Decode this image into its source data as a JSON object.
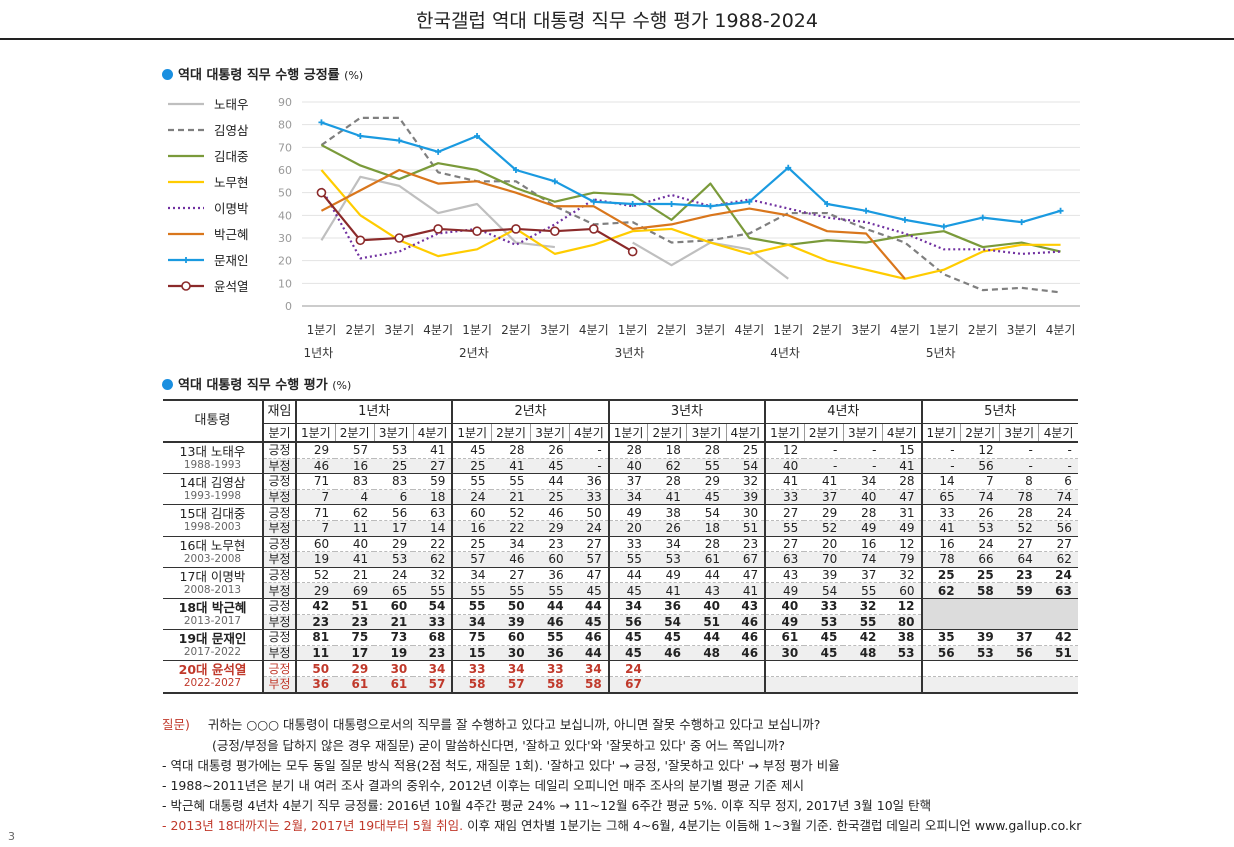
{
  "title": "한국갤럽 역대 대통령 직무 수행 평가 1988-2024",
  "section1_title": "역대 대통령 직무 수행 긍정률",
  "section2_title": "역대 대통령 직무 수행 평가",
  "unit": "(%)",
  "colors": {
    "accent": "#1a8fe0",
    "red": "#c0392b"
  },
  "chart_data": {
    "type": "line",
    "ylim": [
      0,
      90
    ],
    "yticks": [
      "0",
      "10",
      "20",
      "30",
      "40",
      "50",
      "60",
      "70",
      "80",
      "90"
    ],
    "x_quarters": [
      "1분기",
      "2분기",
      "3분기",
      "4분기",
      "1분기",
      "2분기",
      "3분기",
      "4분기",
      "1분기",
      "2분기",
      "3분기",
      "4분기",
      "1분기",
      "2분기",
      "3분기",
      "4분기",
      "1분기",
      "2분기",
      "3분기",
      "4분기"
    ],
    "x_years": [
      "1년차",
      "2년차",
      "3년차",
      "4년차",
      "5년차"
    ],
    "grid": true,
    "legend_position": "left",
    "series": [
      {
        "name": "노태우",
        "color": "#bfbfbf",
        "dash": "",
        "marker": "none",
        "values": [
          29,
          57,
          53,
          41,
          45,
          28,
          26,
          null,
          28,
          18,
          28,
          25,
          12,
          null,
          null,
          15,
          null,
          12,
          null,
          null
        ]
      },
      {
        "name": "김영삼",
        "color": "#7f7f7f",
        "dash": "6,4",
        "marker": "none",
        "values": [
          71,
          83,
          83,
          59,
          55,
          55,
          44,
          36,
          37,
          28,
          29,
          32,
          41,
          41,
          34,
          28,
          14,
          7,
          8,
          6
        ]
      },
      {
        "name": "김대중",
        "color": "#7a9a3a",
        "dash": "",
        "marker": "none",
        "values": [
          71,
          62,
          56,
          63,
          60,
          52,
          46,
          50,
          49,
          38,
          54,
          30,
          27,
          29,
          28,
          31,
          33,
          26,
          28,
          24
        ]
      },
      {
        "name": "노무현",
        "color": "#ffcc00",
        "dash": "",
        "marker": "none",
        "values": [
          60,
          40,
          29,
          22,
          25,
          34,
          23,
          27,
          33,
          34,
          28,
          23,
          27,
          20,
          16,
          12,
          16,
          24,
          27,
          27
        ]
      },
      {
        "name": "이명박",
        "color": "#7030a0",
        "dash": "2,3",
        "marker": "none",
        "values": [
          52,
          21,
          24,
          32,
          34,
          27,
          36,
          47,
          44,
          49,
          44,
          47,
          43,
          39,
          37,
          32,
          25,
          25,
          23,
          24
        ]
      },
      {
        "name": "박근혜",
        "color": "#d9761c",
        "dash": "",
        "marker": "none",
        "values": [
          42,
          51,
          60,
          54,
          55,
          50,
          44,
          44,
          34,
          36,
          40,
          43,
          40,
          33,
          32,
          12,
          null,
          null,
          null,
          null
        ]
      },
      {
        "name": "문재인",
        "color": "#1a9ae0",
        "dash": "",
        "marker": "plus",
        "values": [
          81,
          75,
          73,
          68,
          75,
          60,
          55,
          46,
          45,
          45,
          44,
          46,
          61,
          45,
          42,
          38,
          35,
          39,
          37,
          42
        ]
      },
      {
        "name": "윤석열",
        "color": "#8b2a2a",
        "dash": "",
        "marker": "circle",
        "values": [
          50,
          29,
          30,
          34,
          33,
          34,
          33,
          34,
          24,
          null,
          null,
          null,
          null,
          null,
          null,
          null,
          null,
          null,
          null,
          null
        ]
      }
    ]
  },
  "table": {
    "col_president": "대통령",
    "col_term": "재임",
    "col_quarter": "분기",
    "years": [
      "1년차",
      "2년차",
      "3년차",
      "4년차",
      "5년차"
    ],
    "quarters": [
      "1분기",
      "2분기",
      "3분기",
      "4분기",
      "1분기",
      "2분기",
      "3분기",
      "4분기",
      "1분기",
      "2분기",
      "3분기",
      "4분기",
      "1분기",
      "2분기",
      "3분기",
      "4분기",
      "1분기",
      "2분기",
      "3분기",
      "4분기"
    ],
    "label_pos": "긍정",
    "label_neg": "부정",
    "rows": [
      {
        "name": "13대 노태우",
        "years": "1988-1993",
        "bold": false,
        "red": false,
        "grayFrom": null,
        "pos": [
          "29",
          "57",
          "53",
          "41",
          "45",
          "28",
          "26",
          "-",
          "28",
          "18",
          "28",
          "25",
          "12",
          "-",
          "-",
          "15",
          "-",
          "12",
          "-",
          "-"
        ],
        "neg": [
          "46",
          "16",
          "25",
          "27",
          "25",
          "41",
          "45",
          "-",
          "40",
          "62",
          "55",
          "54",
          "40",
          "-",
          "-",
          "41",
          "-",
          "56",
          "-",
          "-"
        ]
      },
      {
        "name": "14대 김영삼",
        "years": "1993-1998",
        "bold": false,
        "red": false,
        "grayFrom": null,
        "pos": [
          "71",
          "83",
          "83",
          "59",
          "55",
          "55",
          "44",
          "36",
          "37",
          "28",
          "29",
          "32",
          "41",
          "41",
          "34",
          "28",
          "14",
          "7",
          "8",
          "6"
        ],
        "neg": [
          "7",
          "4",
          "6",
          "18",
          "24",
          "21",
          "25",
          "33",
          "34",
          "41",
          "45",
          "39",
          "33",
          "37",
          "40",
          "47",
          "65",
          "74",
          "78",
          "74"
        ]
      },
      {
        "name": "15대 김대중",
        "years": "1998-2003",
        "bold": false,
        "red": false,
        "grayFrom": null,
        "pos": [
          "71",
          "62",
          "56",
          "63",
          "60",
          "52",
          "46",
          "50",
          "49",
          "38",
          "54",
          "30",
          "27",
          "29",
          "28",
          "31",
          "33",
          "26",
          "28",
          "24"
        ],
        "neg": [
          "7",
          "11",
          "17",
          "14",
          "16",
          "22",
          "29",
          "24",
          "20",
          "26",
          "18",
          "51",
          "55",
          "52",
          "49",
          "49",
          "41",
          "53",
          "52",
          "56"
        ]
      },
      {
        "name": "16대 노무현",
        "years": "2003-2008",
        "bold": false,
        "red": false,
        "grayFrom": null,
        "pos": [
          "60",
          "40",
          "29",
          "22",
          "25",
          "34",
          "23",
          "27",
          "33",
          "34",
          "28",
          "23",
          "27",
          "20",
          "16",
          "12",
          "16",
          "24",
          "27",
          "27"
        ],
        "neg": [
          "19",
          "41",
          "53",
          "62",
          "57",
          "46",
          "60",
          "57",
          "55",
          "53",
          "61",
          "67",
          "63",
          "70",
          "74",
          "79",
          "78",
          "66",
          "64",
          "62"
        ]
      },
      {
        "name": "17대 이명박",
        "years": "2008-2013",
        "bold": false,
        "red": false,
        "grayFrom": null,
        "boldFrom": 16,
        "pos": [
          "52",
          "21",
          "24",
          "32",
          "34",
          "27",
          "36",
          "47",
          "44",
          "49",
          "44",
          "47",
          "43",
          "39",
          "37",
          "32",
          "25",
          "25",
          "23",
          "24"
        ],
        "neg": [
          "29",
          "69",
          "65",
          "55",
          "55",
          "55",
          "55",
          "45",
          "45",
          "41",
          "43",
          "41",
          "49",
          "54",
          "55",
          "60",
          "62",
          "58",
          "59",
          "63"
        ]
      },
      {
        "name": "18대 박근혜",
        "years": "2013-2017",
        "bold": true,
        "red": false,
        "grayFrom": 16,
        "pos": [
          "42",
          "51",
          "60",
          "54",
          "55",
          "50",
          "44",
          "44",
          "34",
          "36",
          "40",
          "43",
          "40",
          "33",
          "32",
          "12",
          "",
          "",
          "",
          ""
        ],
        "neg": [
          "23",
          "23",
          "21",
          "33",
          "34",
          "39",
          "46",
          "45",
          "56",
          "54",
          "51",
          "46",
          "49",
          "53",
          "55",
          "80",
          "",
          "",
          "",
          ""
        ]
      },
      {
        "name": "19대 문재인",
        "years": "2017-2022",
        "bold": true,
        "red": false,
        "grayFrom": null,
        "pos": [
          "81",
          "75",
          "73",
          "68",
          "75",
          "60",
          "55",
          "46",
          "45",
          "45",
          "44",
          "46",
          "61",
          "45",
          "42",
          "38",
          "35",
          "39",
          "37",
          "42"
        ],
        "neg": [
          "11",
          "17",
          "19",
          "23",
          "15",
          "30",
          "36",
          "44",
          "45",
          "46",
          "48",
          "46",
          "30",
          "45",
          "48",
          "53",
          "56",
          "53",
          "56",
          "51"
        ]
      },
      {
        "name": "20대 윤석열",
        "years": "2022-2027",
        "bold": true,
        "red": true,
        "grayFrom": null,
        "pos": [
          "50",
          "29",
          "30",
          "34",
          "33",
          "34",
          "33",
          "34",
          "24",
          "",
          "",
          "",
          "",
          "",
          "",
          "",
          "",
          "",
          "",
          ""
        ],
        "neg": [
          "36",
          "61",
          "61",
          "57",
          "58",
          "57",
          "58",
          "58",
          "67",
          "",
          "",
          "",
          "",
          "",
          "",
          "",
          "",
          "",
          "",
          ""
        ]
      }
    ]
  },
  "notes": {
    "q_label": "질문)",
    "q1": "귀하는 ○○○ 대통령이 대통령으로서의 직무를 잘 수행하고 있다고 보십니까, 아니면 잘못 수행하고 있다고 보십니까?",
    "q2": "(긍정/부정을 답하지 않은 경우 재질문) 굳이 말씀하신다면, '잘하고 있다'와 '잘못하고 있다' 중 어느 쪽입니까?",
    "n1": "- 역대 대통령 평가에는 모두 동일 질문 방식 적용(2점 척도, 재질문 1회). '잘하고 있다' → 긍정, '잘못하고 있다' → 부정 평가 비율",
    "n2": "- 1988~2011년은 분기 내 여러 조사 결과의 중위수, 2012년 이후는 데일리 오피니언 매주 조사의 분기별 평균 기준 제시",
    "n3": "- 박근혜 대통령 4년차 4분기 직무 긍정률: 2016년 10월 4주간 평균 24% → 11~12월 6주간 평균 5%. 이후 직무 정지, 2017년 3월 10일 탄핵",
    "n4_red": "- 2013년 18대까지는 2월, 2017년 19대부터 5월 취임.",
    "n4_rest": " 이후 재임 연차별 1분기는 그해 4~6월, 4분기는 이듬해 1~3월 기준. 한국갤럽 데일리 오피니언 www.gallup.co.kr"
  },
  "page_number": "3"
}
